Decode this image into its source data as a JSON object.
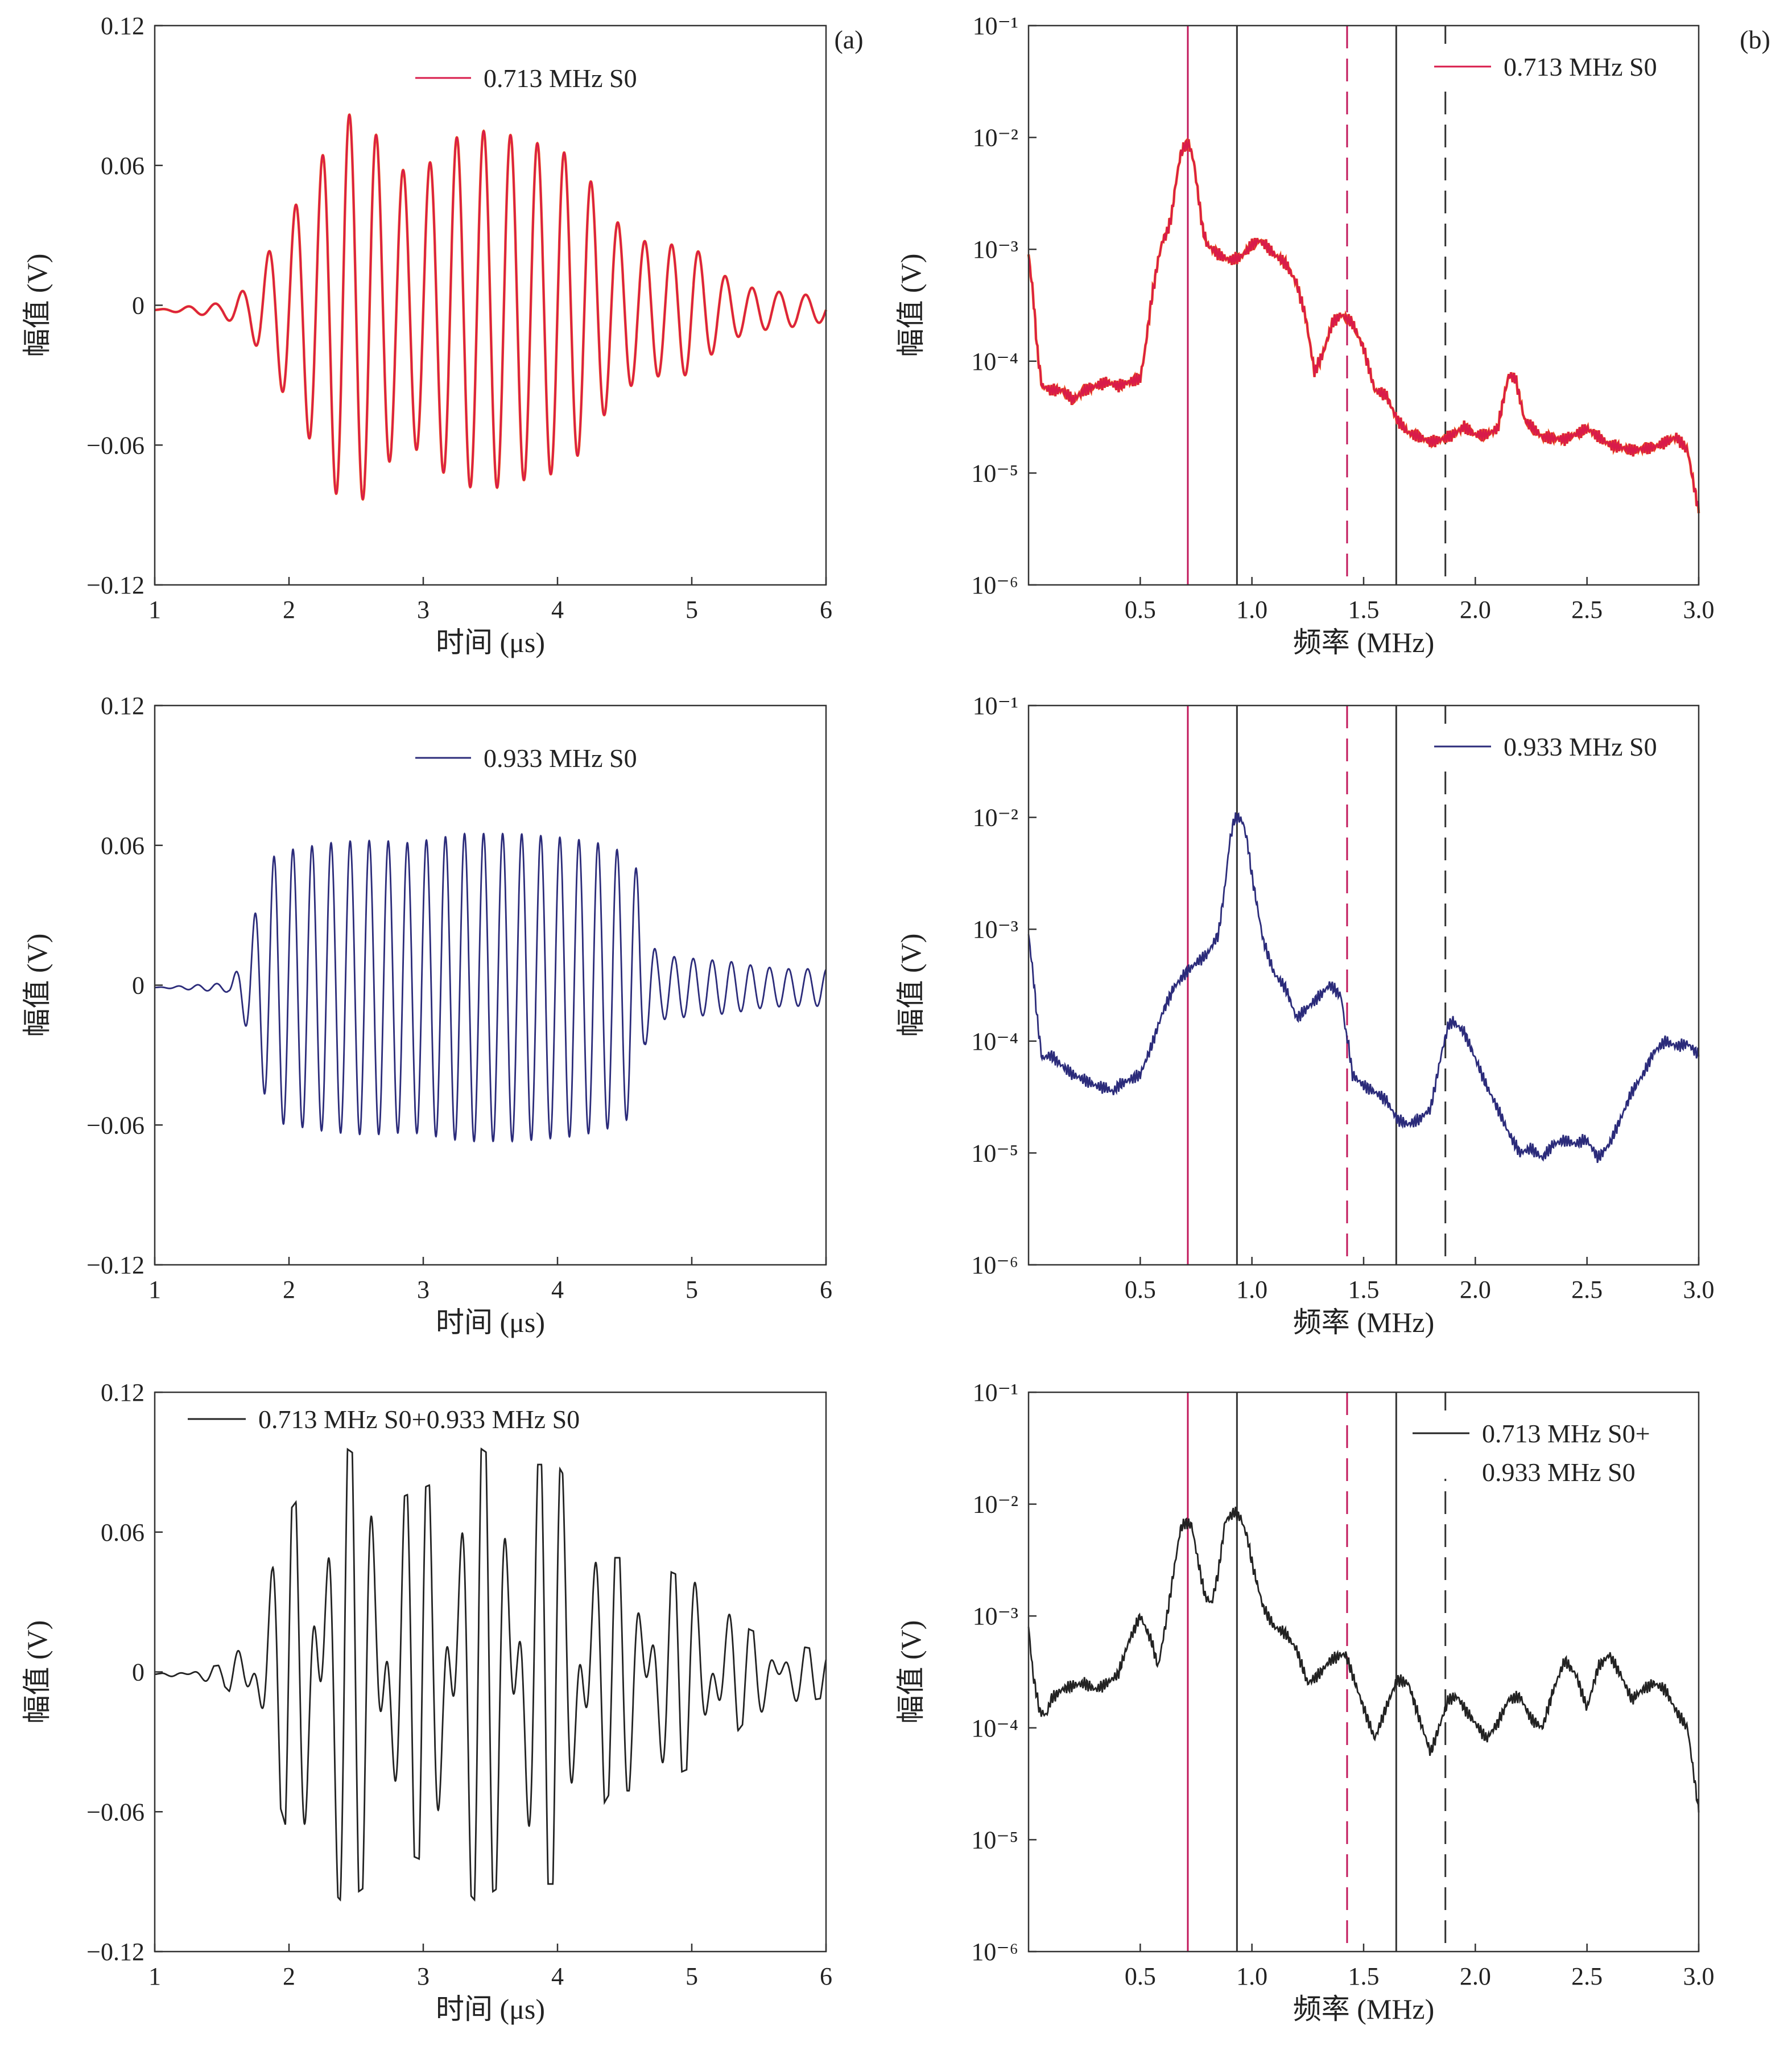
{
  "figure": {
    "panel_labels": [
      "(a)",
      "(b)"
    ]
  },
  "colors": {
    "red_series": "#d81b4a",
    "red_overlay": "#f05a1a",
    "navy_series": "#2b2b7a",
    "black_series": "#222222",
    "marker_red": "#c2185b",
    "marker_black": "#333333"
  },
  "chart_data": [
    {
      "id": "a1",
      "type": "line",
      "title": "",
      "xlabel": "时间 (μs)",
      "ylabel": "幅值 (V)",
      "xlim": [
        1,
        6
      ],
      "ylim": [
        -0.12,
        0.12
      ],
      "xticks": [
        "1",
        "2",
        "3",
        "4",
        "5",
        "6"
      ],
      "yticks": [
        "0.12",
        "0.06",
        "0",
        "−0.06",
        "−0.12"
      ],
      "legend": "0.713 MHz S0",
      "legend_position": "top-center",
      "series": [
        {
          "name": "0.713 MHz S0",
          "color_key": "red_series",
          "overlay_color_key": "red_overlay",
          "x": [
            1.0,
            1.5,
            1.6,
            1.7,
            1.8,
            2.0,
            2.2,
            2.4,
            2.6,
            2.8,
            3.0,
            3.2,
            3.4,
            3.6,
            3.8,
            4.0,
            4.2,
            4.4,
            4.6,
            4.8,
            5.0,
            5.2,
            5.4,
            5.6,
            5.8,
            6.0
          ],
          "envelope": [
            0.0,
            0.003,
            0.006,
            0.01,
            0.02,
            0.04,
            0.06,
            0.085,
            0.08,
            0.06,
            0.06,
            0.073,
            0.077,
            0.076,
            0.072,
            0.07,
            0.06,
            0.04,
            0.03,
            0.028,
            0.028,
            0.016,
            0.01,
            0.008,
            0.007,
            0.005
          ],
          "carrier_period": 0.2,
          "offset": -0.002
        }
      ]
    },
    {
      "id": "b1",
      "type": "line",
      "title": "",
      "xlabel": "频率 (MHz)",
      "ylabel": "幅值 (V)",
      "xlim": [
        0,
        3
      ],
      "ylim_log10": [
        -6,
        -1
      ],
      "xticks": [
        "0.5",
        "1.0",
        "1.5",
        "2.0",
        "2.5",
        "3.0"
      ],
      "yticks": [
        "10⁻¹",
        "10⁻²",
        "10⁻³",
        "10⁻⁴",
        "10⁻⁵",
        "10⁻⁶"
      ],
      "legend": "0.713 MHz S0",
      "legend_position": "top-right",
      "markers_mhz": [
        {
          "x": 0.713,
          "style": "solid",
          "color_key": "marker_red"
        },
        {
          "x": 0.933,
          "style": "solid",
          "color_key": "marker_black"
        },
        {
          "x": 1.426,
          "style": "dashed",
          "color_key": "marker_red"
        },
        {
          "x": 1.646,
          "style": "solid",
          "color_key": "marker_black"
        },
        {
          "x": 1.866,
          "style": "dashed",
          "color_key": "marker_black"
        }
      ],
      "series": [
        {
          "name": "0.713 MHz S0",
          "color_key": "red_series",
          "overlay_color_key": "red_overlay",
          "x": [
            0.0,
            0.02,
            0.04,
            0.06,
            0.1,
            0.15,
            0.2,
            0.25,
            0.3,
            0.35,
            0.4,
            0.45,
            0.5,
            0.52,
            0.55,
            0.58,
            0.6,
            0.62,
            0.64,
            0.66,
            0.68,
            0.7,
            0.72,
            0.74,
            0.76,
            0.78,
            0.8,
            0.85,
            0.9,
            0.95,
            1.0,
            1.03,
            1.06,
            1.1,
            1.15,
            1.2,
            1.24,
            1.28,
            1.32,
            1.36,
            1.4,
            1.45,
            1.5,
            1.55,
            1.6,
            1.65,
            1.7,
            1.75,
            1.8,
            1.85,
            1.9,
            1.95,
            2.0,
            2.05,
            2.1,
            2.13,
            2.15,
            2.18,
            2.22,
            2.3,
            2.4,
            2.5,
            2.6,
            2.7,
            2.8,
            2.9,
            2.95,
            3.0
          ],
          "y": [
            0.0009,
            0.0004,
            0.00012,
            6e-05,
            5.5e-05,
            5.5e-05,
            4.5e-05,
            5.5e-05,
            6e-05,
            6.5e-05,
            6e-05,
            6.5e-05,
            7e-05,
            0.00012,
            0.00035,
            0.0008,
            0.0012,
            0.0014,
            0.002,
            0.004,
            0.007,
            0.0085,
            0.0086,
            0.006,
            0.003,
            0.0015,
            0.0011,
            0.0009,
            0.0008,
            0.00085,
            0.0011,
            0.0012,
            0.0011,
            0.0009,
            0.00075,
            0.0005,
            0.00025,
            8e-05,
            0.00012,
            0.00022,
            0.00026,
            0.00022,
            0.00013,
            5.5e-05,
            5e-05,
            3e-05,
            2.3e-05,
            2.1e-05,
            1.9e-05,
            2e-05,
            2.2e-05,
            2.6e-05,
            2.2e-05,
            2.2e-05,
            2.5e-05,
            5e-05,
            7.5e-05,
            7e-05,
            3e-05,
            2.1e-05,
            2e-05,
            2.5e-05,
            1.8e-05,
            1.6e-05,
            1.7e-05,
            2.1e-05,
            1.6e-05,
            4.5e-06
          ]
        }
      ]
    },
    {
      "id": "a2",
      "type": "line",
      "title": "",
      "xlabel": "时间 (μs)",
      "ylabel": "幅值 (V)",
      "xlim": [
        1,
        6
      ],
      "ylim": [
        -0.12,
        0.12
      ],
      "xticks": [
        "1",
        "2",
        "3",
        "4",
        "5",
        "6"
      ],
      "yticks": [
        "0.12",
        "0.06",
        "0",
        "−0.06",
        "−0.12"
      ],
      "legend": "0.933 MHz S0",
      "legend_position": "top-center",
      "series": [
        {
          "name": "0.933 MHz S0",
          "color_key": "navy_series",
          "x": [
            1.0,
            1.55,
            1.62,
            1.7,
            1.78,
            1.9,
            2.1,
            2.3,
            2.5,
            2.7,
            2.9,
            3.1,
            3.3,
            3.5,
            3.7,
            3.9,
            4.1,
            4.3,
            4.5,
            4.6,
            4.65,
            4.75,
            4.9,
            5.1,
            5.3,
            5.5,
            5.7,
            5.9,
            6.0
          ],
          "envelope": [
            0.0,
            0.002,
            0.008,
            0.02,
            0.04,
            0.058,
            0.06,
            0.062,
            0.063,
            0.063,
            0.062,
            0.064,
            0.066,
            0.066,
            0.066,
            0.065,
            0.064,
            0.062,
            0.058,
            0.05,
            0.025,
            0.014,
            0.013,
            0.012,
            0.011,
            0.009,
            0.008,
            0.008,
            0.008
          ],
          "carrier_period": 0.142,
          "offset": -0.001
        }
      ]
    },
    {
      "id": "b2",
      "type": "line",
      "title": "",
      "xlabel": "频率 (MHz)",
      "ylabel": "幅值 (V)",
      "xlim": [
        0,
        3
      ],
      "ylim_log10": [
        -6,
        -1
      ],
      "xticks": [
        "0.5",
        "1.0",
        "1.5",
        "2.0",
        "2.5",
        "3.0"
      ],
      "yticks": [
        "10⁻¹",
        "10⁻²",
        "10⁻³",
        "10⁻⁴",
        "10⁻⁵",
        "10⁻⁶"
      ],
      "legend": "0.933 MHz S0",
      "legend_position": "top-right",
      "markers_mhz": [
        {
          "x": 0.713,
          "style": "solid",
          "color_key": "marker_red"
        },
        {
          "x": 0.933,
          "style": "solid",
          "color_key": "marker_black"
        },
        {
          "x": 1.426,
          "style": "dashed",
          "color_key": "marker_red"
        },
        {
          "x": 1.646,
          "style": "solid",
          "color_key": "marker_black"
        },
        {
          "x": 1.866,
          "style": "dashed",
          "color_key": "marker_black"
        }
      ],
      "series": [
        {
          "name": "0.933 MHz S0",
          "color_key": "navy_series",
          "x": [
            0.0,
            0.02,
            0.04,
            0.06,
            0.1,
            0.15,
            0.2,
            0.25,
            0.3,
            0.35,
            0.38,
            0.4,
            0.45,
            0.5,
            0.55,
            0.6,
            0.65,
            0.7,
            0.75,
            0.8,
            0.85,
            0.88,
            0.9,
            0.92,
            0.94,
            0.96,
            0.98,
            1.0,
            1.05,
            1.1,
            1.15,
            1.2,
            1.25,
            1.3,
            1.35,
            1.4,
            1.42,
            1.43,
            1.45,
            1.5,
            1.55,
            1.6,
            1.65,
            1.7,
            1.75,
            1.8,
            1.85,
            1.88,
            1.9,
            1.95,
            2.0,
            2.05,
            2.1,
            2.15,
            2.2,
            2.25,
            2.3,
            2.35,
            2.4,
            2.45,
            2.48,
            2.5,
            2.55,
            2.6,
            2.65,
            2.7,
            2.75,
            2.8,
            2.85,
            2.9,
            2.95,
            3.0
          ],
          "y": [
            0.0009,
            0.0004,
            0.00015,
            7e-05,
            7.5e-05,
            6e-05,
            5e-05,
            4.5e-05,
            4e-05,
            3.8e-05,
            3.5e-05,
            4e-05,
            4.5e-05,
            5e-05,
            9e-05,
            0.00018,
            0.0003,
            0.0004,
            0.0005,
            0.0006,
            0.0009,
            0.0025,
            0.006,
            0.0095,
            0.01,
            0.009,
            0.006,
            0.003,
            0.0008,
            0.0004,
            0.0003,
            0.00016,
            0.0002,
            0.00025,
            0.00032,
            0.00025,
            0.00012,
            0.0001,
            5e-05,
            4e-05,
            3.5e-05,
            3e-05,
            2e-05,
            1.8e-05,
            2e-05,
            2.5e-05,
            8e-05,
            0.00014,
            0.00015,
            0.00012,
            7e-05,
            4e-05,
            2.5e-05,
            1.5e-05,
            1e-05,
            1.1e-05,
            9e-06,
            1.2e-05,
            1.3e-05,
            1.2e-05,
            1.3e-05,
            1.3e-05,
            9e-06,
            1.2e-05,
            2e-05,
            3.5e-05,
            5e-05,
            8e-05,
            0.0001,
            9e-05,
            9.5e-05,
            7.5e-05
          ]
        }
      ]
    },
    {
      "id": "a3",
      "type": "line",
      "title": "",
      "xlabel": "时间 (μs)",
      "ylabel": "幅值 (V)",
      "xlim": [
        1,
        6
      ],
      "ylim": [
        -0.12,
        0.12
      ],
      "xticks": [
        "1",
        "2",
        "3",
        "4",
        "5",
        "6"
      ],
      "yticks": [
        "0.12",
        "0.06",
        "0",
        "−0.06",
        "−0.12"
      ],
      "legend": "0.713 MHz S0+0.933 MHz S0",
      "legend_position": "top-left",
      "series": [
        {
          "name": "0.713 MHz S0+0.933 MHz S0",
          "color_key": "black_series",
          "x": [
            1.0,
            1.5,
            1.6,
            1.7,
            1.8,
            2.0,
            2.2,
            2.4,
            2.6,
            2.8,
            3.0,
            3.2,
            3.4,
            3.6,
            3.8,
            4.0,
            4.2,
            4.4,
            4.6,
            4.8,
            5.0,
            5.2,
            5.4,
            5.6,
            5.8,
            6.0
          ],
          "envelope": [
            0.0,
            0.004,
            0.01,
            0.018,
            0.03,
            0.07,
            0.085,
            0.098,
            0.09,
            0.075,
            0.08,
            0.085,
            0.098,
            0.09,
            0.09,
            0.09,
            0.07,
            0.05,
            0.05,
            0.045,
            0.04,
            0.035,
            0.02,
            0.015,
            0.012,
            0.01
          ],
          "carriers": [
            {
              "period": 0.2,
              "weight": 0.5
            },
            {
              "period": 0.142,
              "weight": 0.5
            }
          ],
          "offset": -0.001
        }
      ]
    },
    {
      "id": "b3",
      "type": "line",
      "title": "",
      "xlabel": "频率 (MHz)",
      "ylabel": "幅值 (V)",
      "xlim": [
        0,
        3
      ],
      "ylim_log10": [
        -6,
        -1
      ],
      "xticks": [
        "0.5",
        "1.0",
        "1.5",
        "2.0",
        "2.5",
        "3.0"
      ],
      "yticks": [
        "10⁻¹",
        "10⁻²",
        "10⁻³",
        "10⁻⁴",
        "10⁻⁵",
        "10⁻⁶"
      ],
      "legend": "0.713 MHz S0+",
      "legend_line2": "0.933 MHz S0",
      "legend_position": "top-right",
      "markers_mhz": [
        {
          "x": 0.713,
          "style": "solid",
          "color_key": "marker_red"
        },
        {
          "x": 0.933,
          "style": "solid",
          "color_key": "marker_black"
        },
        {
          "x": 1.426,
          "style": "dashed",
          "color_key": "marker_red"
        },
        {
          "x": 1.646,
          "style": "solid",
          "color_key": "marker_black"
        },
        {
          "x": 1.866,
          "style": "dashed",
          "color_key": "marker_black"
        }
      ],
      "series": [
        {
          "name": "0.713 MHz S0+0.933 MHz S0",
          "color_key": "black_series",
          "x": [
            0.0,
            0.02,
            0.05,
            0.08,
            0.1,
            0.15,
            0.2,
            0.25,
            0.3,
            0.35,
            0.4,
            0.45,
            0.5,
            0.55,
            0.58,
            0.62,
            0.65,
            0.68,
            0.7,
            0.73,
            0.76,
            0.79,
            0.82,
            0.85,
            0.88,
            0.92,
            0.95,
            0.98,
            1.0,
            1.05,
            1.1,
            1.15,
            1.2,
            1.25,
            1.3,
            1.35,
            1.4,
            1.42,
            1.45,
            1.5,
            1.55,
            1.6,
            1.65,
            1.7,
            1.75,
            1.8,
            1.85,
            1.88,
            1.92,
            1.95,
            2.0,
            2.05,
            2.1,
            2.15,
            2.2,
            2.25,
            2.3,
            2.35,
            2.4,
            2.45,
            2.5,
            2.55,
            2.6,
            2.65,
            2.7,
            2.75,
            2.8,
            2.85,
            2.9,
            2.95,
            3.0
          ],
          "y": [
            0.0008,
            0.0003,
            0.00014,
            0.00013,
            0.00018,
            0.00022,
            0.00024,
            0.00025,
            0.00022,
            0.00025,
            0.0003,
            0.0006,
            0.001,
            0.0006,
            0.00035,
            0.001,
            0.0025,
            0.006,
            0.0068,
            0.0065,
            0.003,
            0.0015,
            0.0013,
            0.0025,
            0.007,
            0.0085,
            0.0075,
            0.005,
            0.003,
            0.0012,
            0.0008,
            0.0007,
            0.0005,
            0.00025,
            0.0003,
            0.0004,
            0.00045,
            0.00045,
            0.0003,
            0.00015,
            8e-05,
            0.00015,
            0.00027,
            0.00025,
            0.00012,
            6e-05,
            0.00012,
            0.00018,
            0.00019,
            0.00015,
            0.00011,
            8e-05,
            0.00011,
            0.00018,
            0.00019,
            0.00012,
            0.0001,
            0.00022,
            0.0004,
            0.0003,
            0.00015,
            0.00035,
            0.00045,
            0.0003,
            0.00018,
            0.00022,
            0.00025,
            0.00022,
            0.00014,
            0.0001,
            1.8e-05
          ]
        }
      ]
    }
  ]
}
